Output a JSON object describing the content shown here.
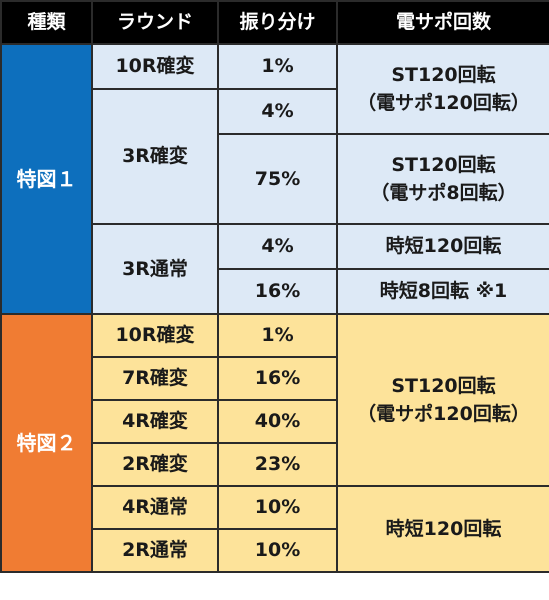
{
  "headers": [
    "種類",
    "ラウンド",
    "振り分け",
    "電サポ回数"
  ],
  "special1": {
    "label": "特図１",
    "r1_round": "10R確変",
    "r1_pct": "1%",
    "st_a_line1": "ST120回転",
    "st_a_line2": "（電サポ120回転）",
    "r2_round": "3R確変",
    "r2_pct": "4%",
    "r3_pct": "75%",
    "st_b_line1": "ST120回転",
    "st_b_line2": "（電サポ8回転）",
    "r4_round": "3R通常",
    "r4_pct": "4%",
    "r4_sup": "時短120回転",
    "r5_pct": "16%",
    "r5_sup": "時短8回転 ※1"
  },
  "special2": {
    "label": "特図２",
    "rows": [
      {
        "round": "10R確変",
        "pct": "1%"
      },
      {
        "round": "7R確変",
        "pct": "16%"
      },
      {
        "round": "4R確変",
        "pct": "40%"
      },
      {
        "round": "2R確変",
        "pct": "23%"
      },
      {
        "round": "4R通常",
        "pct": "10%"
      },
      {
        "round": "2R通常",
        "pct": "10%"
      }
    ],
    "st_line1": "ST120回転",
    "st_line2": "（電サポ120回転）",
    "jitan": "時短120回転"
  },
  "colors": {
    "header_bg": "#000000",
    "special1_bg": "#0d6fbd",
    "special1_cell_bg": "#dde9f6",
    "special2_bg": "#f07c33",
    "special2_cell_bg": "#fde39a"
  }
}
